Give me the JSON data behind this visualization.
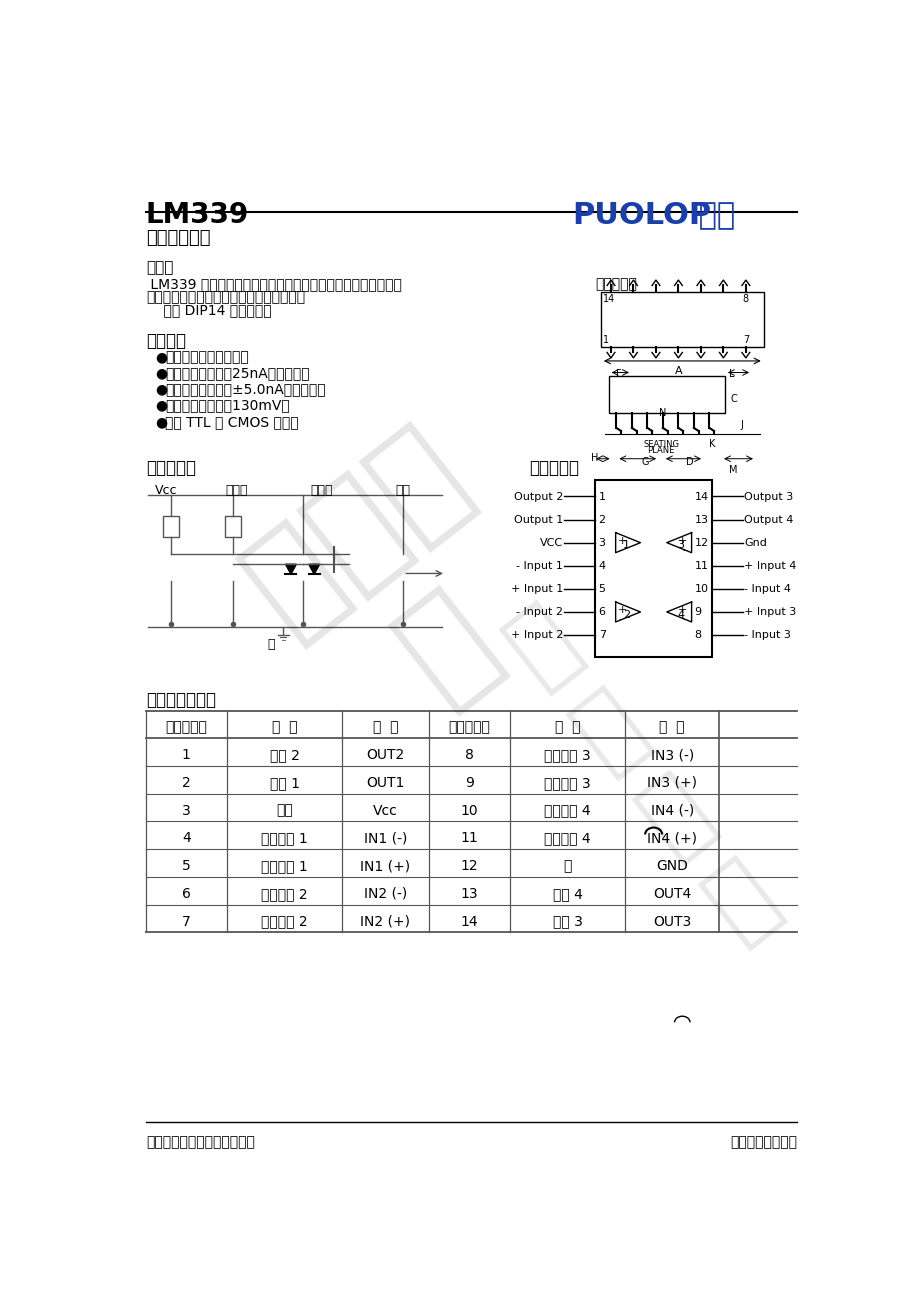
{
  "title_left": "LM339",
  "title_right": "PUOLOP 迪浦",
  "subtitle": "四比较器电路",
  "section_overview": "概述：",
  "overview_text1": " LM339 是一块四比较器集成电路，主要应用于消费类和工业类",
  "overview_text2": "电子产品中，进行电平检波和低电平探测。",
  "overview_text3": "    采用 DIP14 封装形式。",
  "package_label": "封装外形图",
  "section_features": "主要特点",
  "features": [
    "单电源或双电源工作。",
    "输入偏置电流低：25nA（典型）。",
    "输入失调电流低：±5.0nA（典型）。",
    "输出饱和电压低：130mV。",
    "可与 TTL 及 CMOS 兼容。"
  ],
  "section_circuit": "内部电路图",
  "section_pinout": "管脚排列图",
  "circuit_labels": [
    "Vcc",
    "正输入",
    "负输入",
    "输出"
  ],
  "section_terminal": "引出端功能符号",
  "table_headers": [
    "引出端序号",
    "功  能",
    "符  号",
    "引出端序号",
    "功  能",
    "符  号"
  ],
  "table_rows": [
    [
      "1",
      "输出 2",
      "OUT2",
      "8",
      "反相输入 3",
      "IN3 (-)"
    ],
    [
      "2",
      "输出 1",
      "OUT1",
      "9",
      "正相输入 3",
      "IN3 (+)"
    ],
    [
      "3",
      "电源",
      "Vcc",
      "10",
      "反相输入 4",
      "IN4 (-)"
    ],
    [
      "4",
      "反相输入 1",
      "IN1 (-)",
      "11",
      "正相输入 4",
      "IN4 (+)"
    ],
    [
      "5",
      "正相输入 1",
      "IN1 (+)",
      "12",
      "地",
      "GND"
    ],
    [
      "6",
      "反相输入 2",
      "IN2 (-)",
      "13",
      "输出 4",
      "OUT4"
    ],
    [
      "7",
      "正相输入 2",
      "IN2 (+)",
      "14",
      "输出 3",
      "OUT3"
    ]
  ],
  "footer_left": "深圳市骊微电子科技有限公司",
  "footer_right": "半导体专业供应商",
  "pin_labels_left": [
    "Output 2",
    "Output 1",
    "VCC",
    "- Input 1",
    "+ Input 1",
    "- Input 2",
    "+ Input 2"
  ],
  "pin_numbers_left": [
    "1",
    "2",
    "3",
    "4",
    "5",
    "6",
    "7"
  ],
  "pin_labels_right": [
    "Output 3",
    "Output 4",
    "Gnd",
    "+ Input 4",
    "- Input 4",
    "+ Input 3",
    "- Input 3"
  ],
  "pin_numbers_right": [
    "14",
    "13",
    "12",
    "11",
    "10",
    "9",
    "8"
  ],
  "bg_color": "#ffffff",
  "text_color": "#000000",
  "blue_color": "#1a3faa",
  "table_line_color": "#555555"
}
